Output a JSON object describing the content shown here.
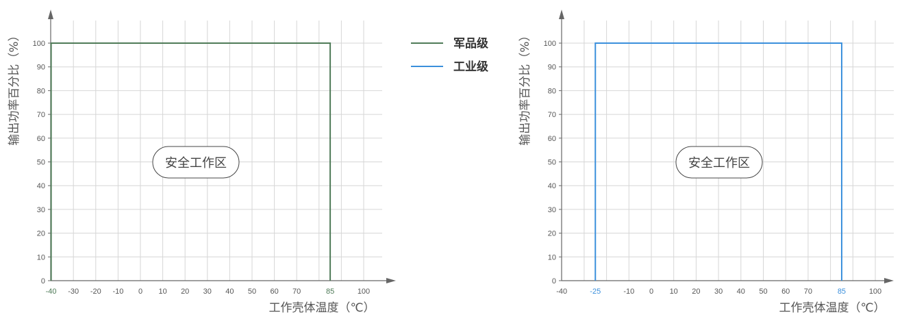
{
  "legend": {
    "military": {
      "label": "军品级",
      "color": "#4e7a57"
    },
    "industrial": {
      "label": "工业级",
      "color": "#3a8fdc"
    }
  },
  "chart_data": [
    {
      "type": "line",
      "xlabel": "工作壳体温度（℃）",
      "ylabel": "输出功率百分比（%）",
      "safe_zone_label": "安全工作区",
      "xlim": [
        -40,
        105
      ],
      "ylim": [
        0,
        100
      ],
      "x_ticks": [
        "-40",
        "-30",
        "-20",
        "-10",
        "0",
        "10",
        "20",
        "30",
        "40",
        "50",
        "60",
        "70",
        "85",
        "100"
      ],
      "y_ticks": [
        "0",
        "10",
        "20",
        "30",
        "40",
        "50",
        "60",
        "70",
        "80",
        "90",
        "100"
      ],
      "series": [
        {
          "name": "军品级",
          "color": "#4e7a57",
          "points": [
            [
              -40,
              0
            ],
            [
              -40,
              100
            ],
            [
              85,
              100
            ],
            [
              85,
              0
            ]
          ]
        }
      ],
      "highlight_ticks": [
        "-40",
        "85"
      ]
    },
    {
      "type": "line",
      "xlabel": "工作壳体温度（℃）",
      "ylabel": "输出功率百分比（%）",
      "safe_zone_label": "安全工作区",
      "xlim": [
        -40,
        105
      ],
      "ylim": [
        0,
        100
      ],
      "x_ticks": [
        "-40",
        "-25",
        "-10",
        "0",
        "10",
        "20",
        "30",
        "40",
        "50",
        "60",
        "70",
        "85",
        "100"
      ],
      "y_ticks": [
        "0",
        "10",
        "20",
        "30",
        "40",
        "50",
        "60",
        "70",
        "80",
        "90",
        "100"
      ],
      "series": [
        {
          "name": "工业级",
          "color": "#3a8fdc",
          "points": [
            [
              -25,
              0
            ],
            [
              -25,
              100
            ],
            [
              85,
              100
            ],
            [
              85,
              0
            ]
          ]
        }
      ],
      "highlight_ticks": [
        "-25",
        "85"
      ]
    }
  ]
}
